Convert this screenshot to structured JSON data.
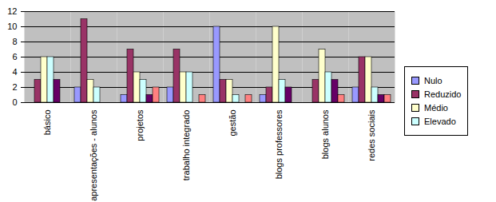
{
  "chart_data": {
    "type": "bar",
    "categories": [
      "básico",
      "apresentações - alunos",
      "projetos",
      "trabalho integrado",
      "gestão",
      "blogs professores",
      "blogs alunos",
      "redes sociais"
    ],
    "series": [
      {
        "name": "Nulo",
        "color": "#9999ff",
        "values": [
          0,
          2,
          1,
          2,
          10,
          1,
          0,
          2
        ]
      },
      {
        "name": "Reduzido",
        "color": "#993366",
        "values": [
          3,
          11,
          7,
          7,
          3,
          2,
          3,
          6
        ]
      },
      {
        "name": "Médio",
        "color": "#ffffcc",
        "values": [
          6,
          3,
          4,
          4,
          3,
          10,
          7,
          6
        ]
      },
      {
        "name": "Elevado",
        "color": "#ccffff",
        "values": [
          6,
          2,
          3,
          4,
          1,
          3,
          4,
          2
        ]
      },
      {
        "name": null,
        "color": "#660066",
        "values": [
          3,
          0,
          1,
          0,
          0,
          2,
          3,
          1
        ]
      },
      {
        "name": null,
        "color": "#ff8080",
        "values": [
          0,
          0,
          2,
          1,
          1,
          0,
          1,
          1
        ]
      }
    ],
    "ylim": [
      0,
      12
    ],
    "yticks": [
      0,
      2,
      4,
      6,
      8,
      10,
      12
    ],
    "grid": true,
    "legend": "right"
  }
}
